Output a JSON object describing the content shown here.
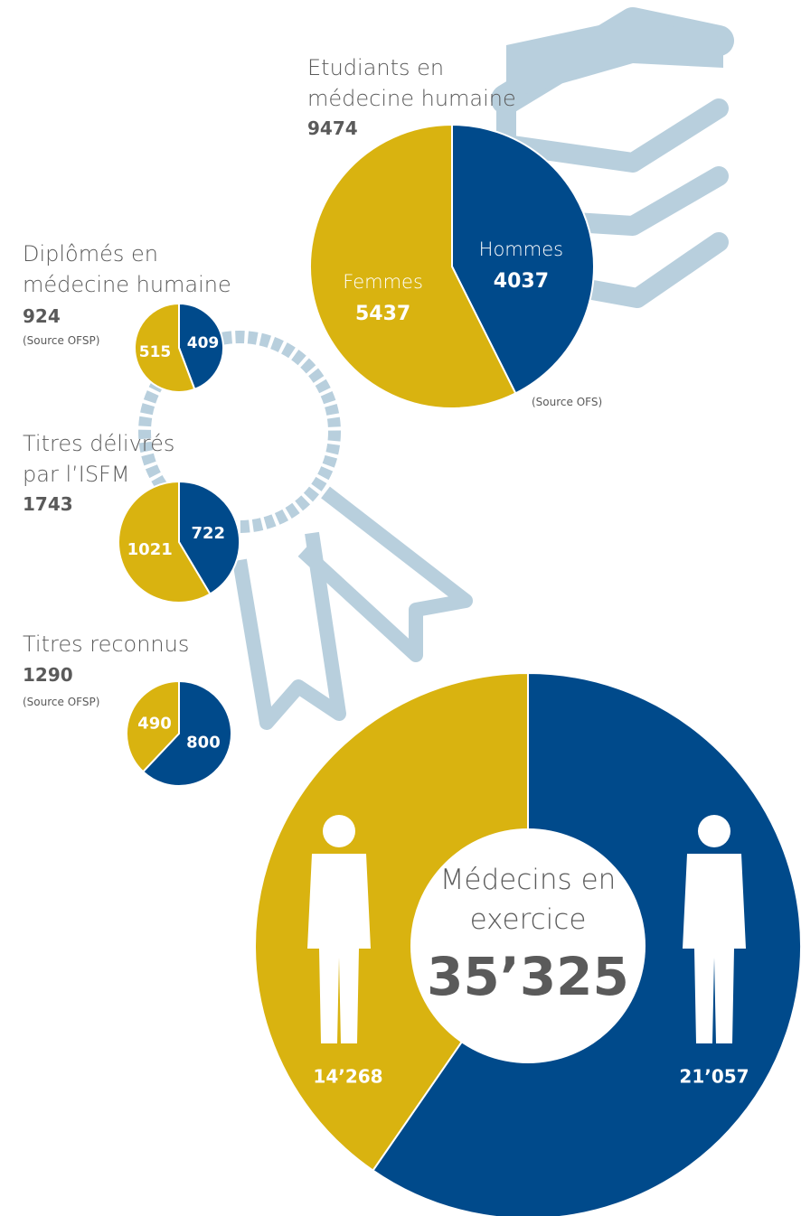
{
  "chart_data": [
    {
      "type": "pie",
      "title": "Etudiants en médecine humaine",
      "total": 9474,
      "categories": [
        "Hommes",
        "Femmes"
      ],
      "values": [
        4037,
        5437
      ],
      "colors": [
        "#004a8b",
        "#d9b310"
      ],
      "source": "(Source OFS)"
    },
    {
      "type": "pie",
      "title": "Diplômés en médecine humaine",
      "total": 924,
      "values": [
        409,
        515
      ],
      "colors": [
        "#004a8b",
        "#d9b310"
      ],
      "source": "(Source OFSP)"
    },
    {
      "type": "pie",
      "title": "Titres délivrés par l’ISFM",
      "total": 1743,
      "values": [
        722,
        1021
      ],
      "colors": [
        "#004a8b",
        "#d9b310"
      ]
    },
    {
      "type": "pie",
      "title": "Titres reconnus",
      "total": 1290,
      "values": [
        800,
        490
      ],
      "colors": [
        "#004a8b",
        "#d9b310"
      ],
      "source": "(Source OFSP)"
    },
    {
      "type": "donut",
      "title": "Médecins en exercice",
      "total": 35325,
      "total_label": "35’325",
      "values": [
        21057,
        14268
      ],
      "value_labels": [
        "21’057",
        "14’268"
      ],
      "colors": [
        "#004a8b",
        "#d9b310"
      ]
    }
  ]
}
